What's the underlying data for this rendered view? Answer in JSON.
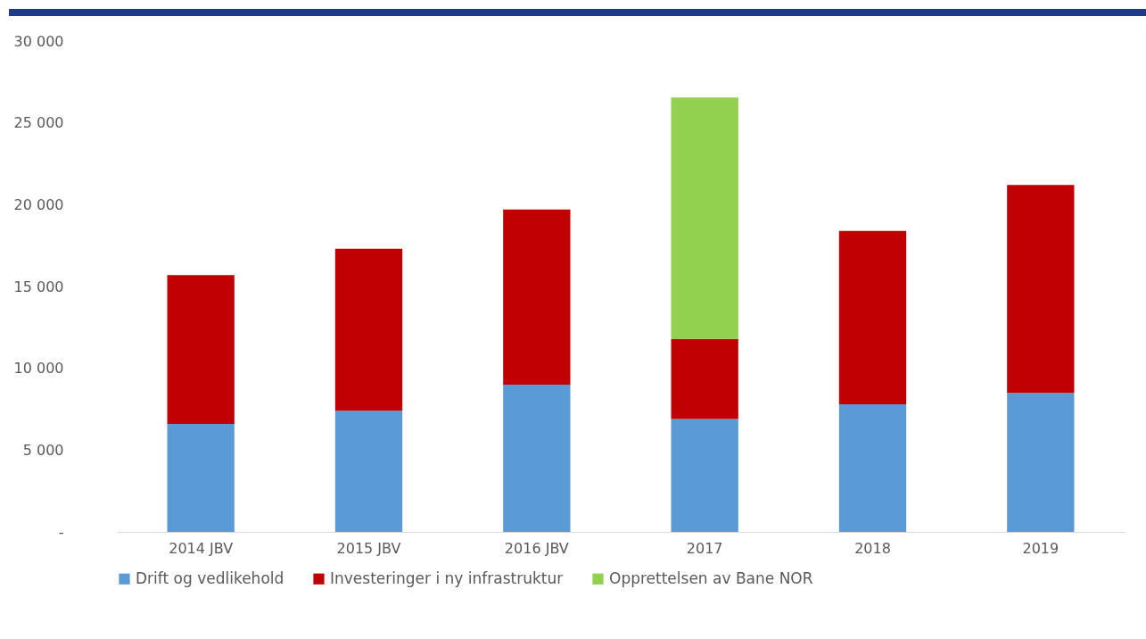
{
  "chart_data": {
    "type": "bar",
    "stacked": true,
    "categories": [
      "2014 JBV",
      "2015 JBV",
      "2016 JBV",
      "2017",
      "2018",
      "2019"
    ],
    "series": [
      {
        "name": "Drift og vedlikehold",
        "color": "#5b9bd5",
        "values": [
          6600,
          7400,
          9000,
          6900,
          7800,
          8500
        ]
      },
      {
        "name": "Investeringer i ny infrastruktur",
        "color": "#c00000",
        "values": [
          9100,
          9900,
          10700,
          4900,
          10600,
          12700
        ]
      },
      {
        "name": "Opprettelsen av Bane NOR",
        "color": "#92d050",
        "values": [
          null,
          null,
          null,
          14750,
          null,
          null
        ]
      }
    ],
    "ylim": [
      0,
      30000
    ],
    "yticks": [
      {
        "value": 0,
        "label": "-"
      },
      {
        "value": 5000,
        "label": "5 000"
      },
      {
        "value": 10000,
        "label": "10 000"
      },
      {
        "value": 15000,
        "label": "15 000"
      },
      {
        "value": 20000,
        "label": "20 000"
      },
      {
        "value": 25000,
        "label": "25 000"
      },
      {
        "value": 30000,
        "label": "30 000"
      }
    ],
    "grid": false,
    "legend": "bottom"
  }
}
